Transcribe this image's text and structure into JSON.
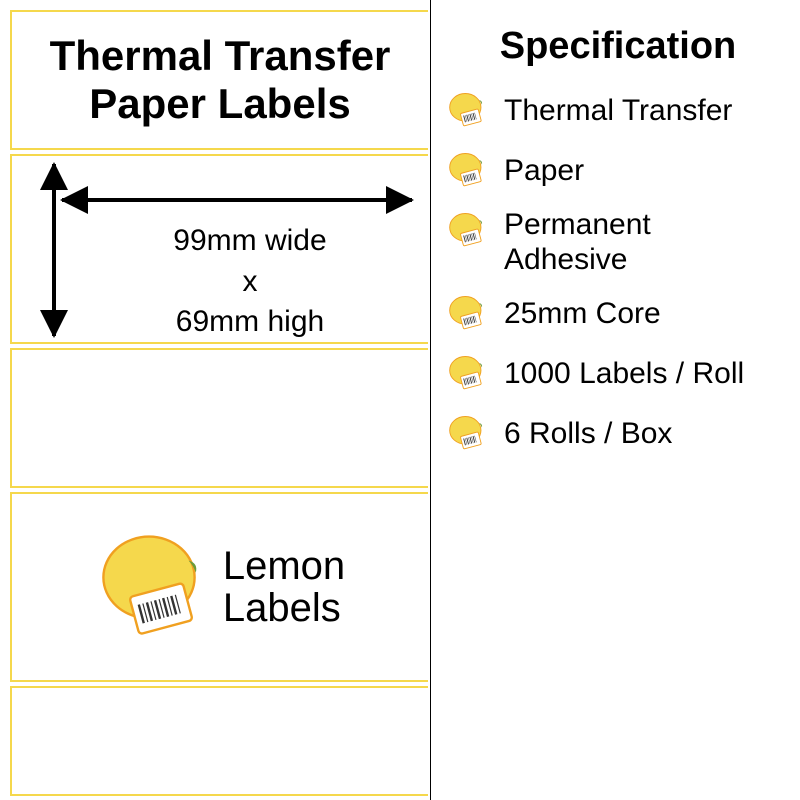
{
  "colors": {
    "lemon_yellow": "#f5d84c",
    "lemon_orange": "#f0a020",
    "text_black": "#000000",
    "white": "#ffffff",
    "label_border": "#f5d84c"
  },
  "product": {
    "title_line1": "Thermal Transfer",
    "title_line2": "Paper Labels",
    "width_text": "99mm wide",
    "x_text": "x",
    "height_text": "69mm high"
  },
  "logo": {
    "brand_line1": "Lemon",
    "brand_line2": "Labels"
  },
  "spec": {
    "heading": "Specification",
    "items": [
      {
        "text": "Thermal Transfer",
        "multiline": false
      },
      {
        "text": "Paper",
        "multiline": false
      },
      {
        "text": "Permanent Adhesive",
        "multiline": true,
        "line1": "Permanent",
        "line2": "Adhesive"
      },
      {
        "text": "25mm Core",
        "multiline": false
      },
      {
        "text": "1000 Labels / Roll",
        "multiline": false
      },
      {
        "text": "6 Rolls / Box",
        "multiline": false
      }
    ]
  },
  "typography": {
    "title_fontsize": 42,
    "dim_fontsize": 30,
    "spec_heading_fontsize": 38,
    "spec_item_fontsize": 30,
    "logo_fontsize": 40
  }
}
